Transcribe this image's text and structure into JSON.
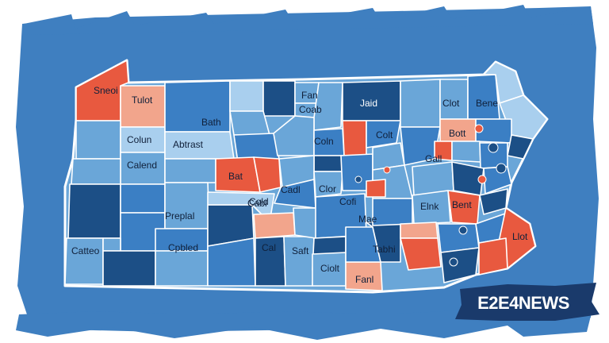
{
  "colors": {
    "background": "#3f7fc0",
    "dark_county": "#1c4f86",
    "mid_county": "#3b7fc4",
    "light_county": "#6aa6d8",
    "pale_county": "#a9cfee",
    "red_county": "#e8593f",
    "salmon_county": "#f2a58c",
    "border": "#ffffff",
    "logo_bg": "#1a3a6b"
  },
  "map": {
    "state_shape": "Pennsylvania",
    "county_labels": [
      "Sneoi",
      "Tulot",
      "Bath",
      "Colun",
      "Abtrast",
      "Calend",
      "Fan",
      "Coab",
      "Jaid",
      "Coln",
      "Bene",
      "Cold",
      "Bat",
      "Clot",
      "Bott",
      "Gall",
      "Colt",
      "Clor",
      "Cofi",
      "Cadl",
      "Mae",
      "Elnk",
      "Bent",
      "Preplal",
      "Cabl",
      "Cpbled",
      "Catteo",
      "Saft",
      "Ciolt",
      "Tabhi",
      "Fanl",
      "Llot",
      "Cal"
    ]
  },
  "logo": {
    "text": "E2E4NEWS"
  }
}
